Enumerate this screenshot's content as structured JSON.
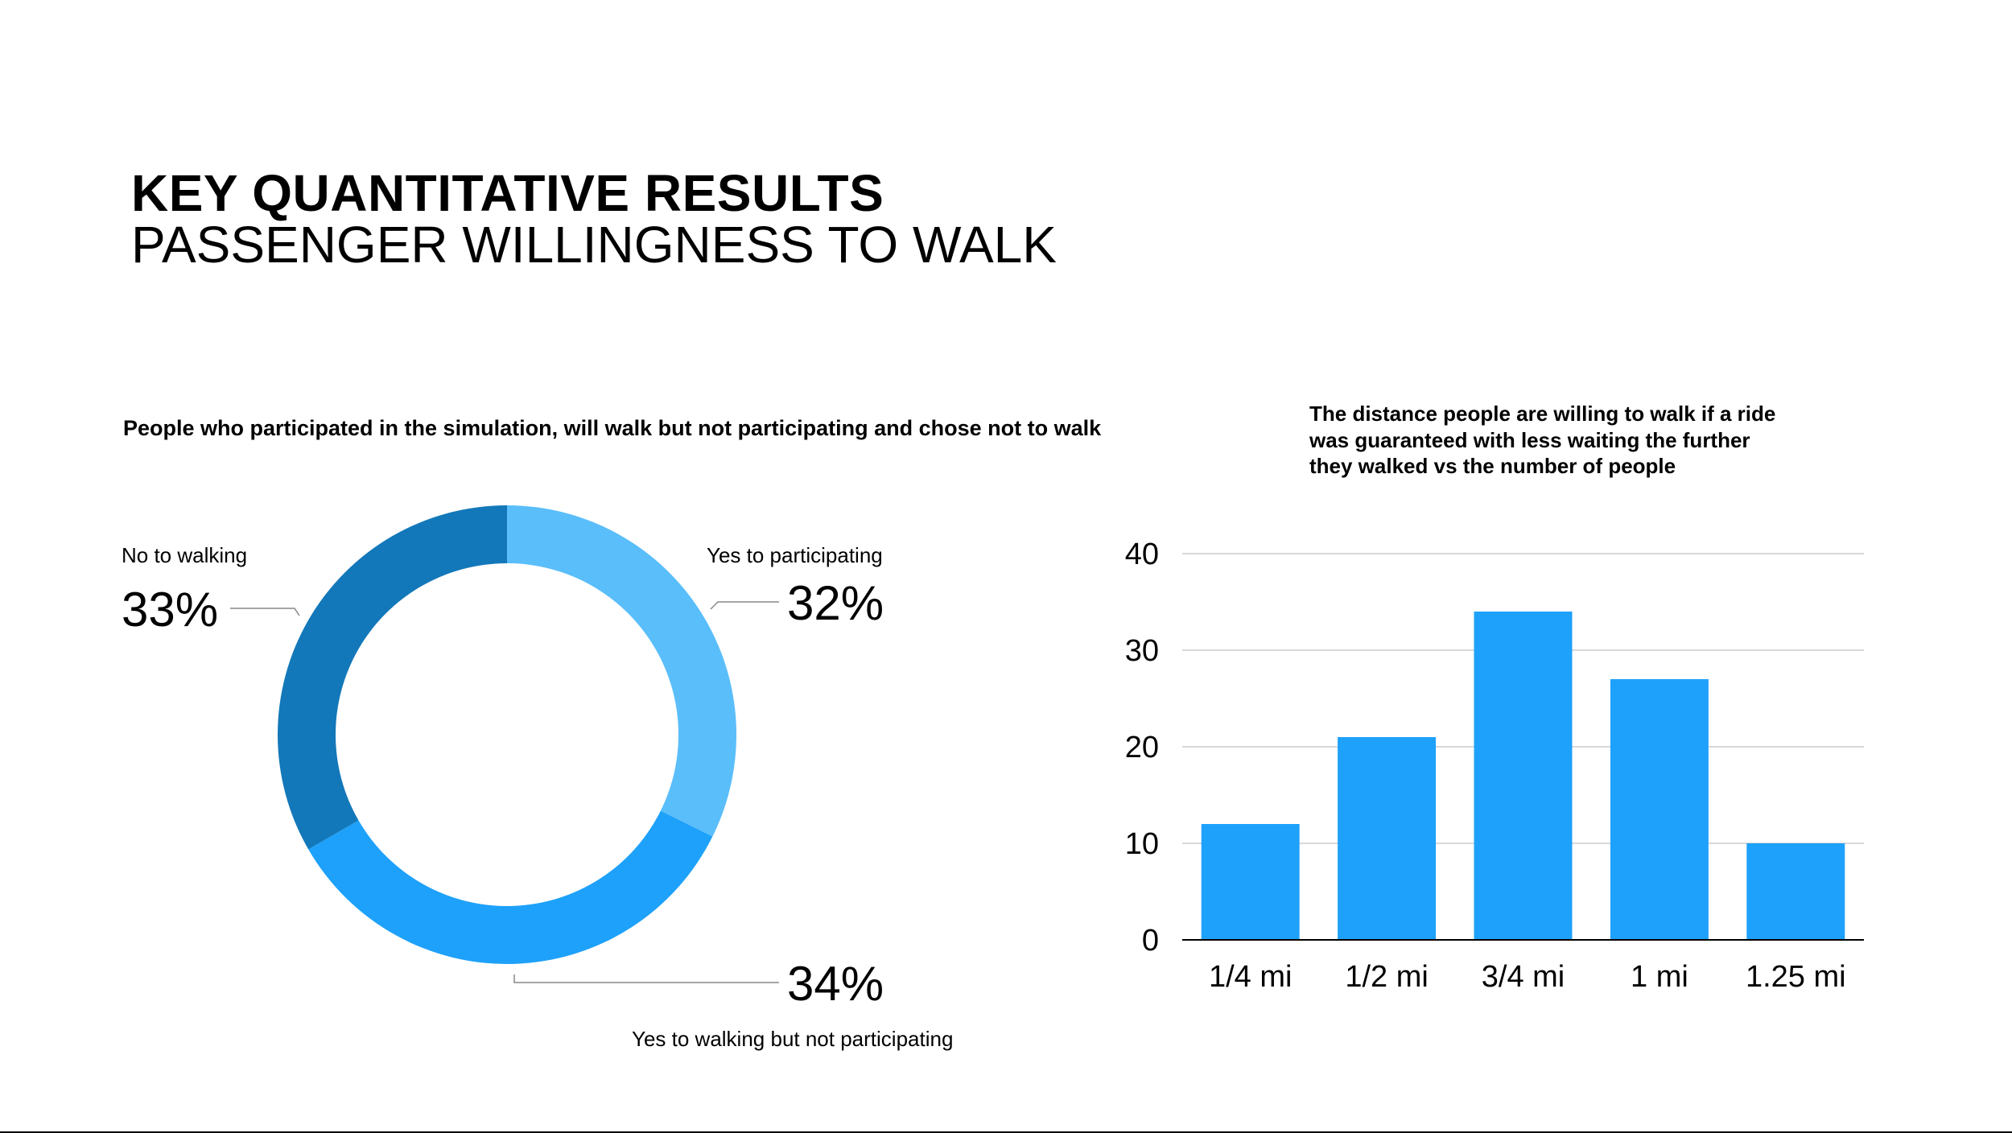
{
  "header": {
    "title": "KEY QUANTITATIVE RESULTS",
    "subtitle": "PASSENGER WILLINGNESS TO WALK"
  },
  "colors": {
    "light_blue": "#5ABEFA",
    "mid_blue": "#1EA1FA",
    "dark_blue": "#1378B9",
    "bar_blue": "#1EA1FA",
    "gridline": "#CCCCCC",
    "leader_line": "#888888"
  },
  "chart_data": [
    {
      "type": "pie",
      "style": "donut",
      "title": "People who participated in the simulation, will walk but not participating and chose not to walk",
      "slices": [
        {
          "label": "Yes to participating",
          "value": 32,
          "display": "32%",
          "color": "#5ABEFA"
        },
        {
          "label": "Yes to walking but not participating",
          "value": 34,
          "display": "34%",
          "color": "#1EA1FA"
        },
        {
          "label": "No to walking",
          "value": 33,
          "display": "33%",
          "color": "#1378B9"
        }
      ]
    },
    {
      "type": "bar",
      "title_lines": [
        "The distance people are willing to walk if a ride",
        "was guaranteed with less waiting the further",
        "they walked vs the number of people"
      ],
      "categories": [
        "1/4 mi",
        "1/2 mi",
        "3/4 mi",
        "1 mi",
        "1.25 mi"
      ],
      "values": [
        12,
        21,
        34,
        27,
        10
      ],
      "ylim": [
        0,
        40
      ],
      "yticks": [
        "0",
        "10",
        "20",
        "30",
        "40"
      ],
      "grid": true,
      "xlabel": "",
      "ylabel": ""
    }
  ]
}
